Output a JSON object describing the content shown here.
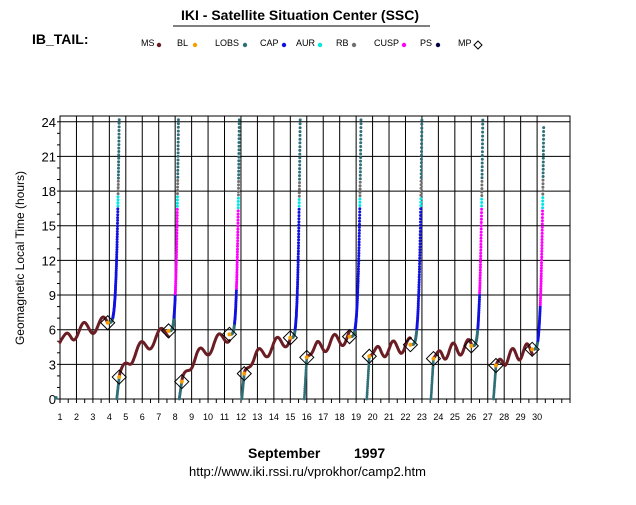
{
  "header": {
    "title": "IKI - Satellite Situation Center (SSC)",
    "satellite_label": "IB_TAIL:"
  },
  "legend": [
    {
      "label": "MS",
      "color": "#6b1d24",
      "shape": "dot"
    },
    {
      "label": "BL",
      "color": "#f5a000",
      "shape": "dot"
    },
    {
      "label": "LOBS",
      "color": "#2f6f78",
      "shape": "dot"
    },
    {
      "label": "CAP",
      "color": "#1010e0",
      "shape": "dot"
    },
    {
      "label": "AUR",
      "color": "#00e5e5",
      "shape": "dot"
    },
    {
      "label": "RB",
      "color": "#707070",
      "shape": "dot"
    },
    {
      "label": "CUSP",
      "color": "#ff00ff",
      "shape": "dot"
    },
    {
      "label": "PS",
      "color": "#000040",
      "shape": "dot"
    },
    {
      "label": "MP",
      "color": "#000000",
      "shape": "diamond"
    }
  ],
  "footer": {
    "month": "September",
    "year": "1997",
    "url": "http://www.iki.rssi.ru/vprokhor/camp2.htm"
  },
  "chart_data": {
    "type": "scatter",
    "title": "IKI - Satellite Situation Center (SSC)",
    "xlabel": "September 1997",
    "ylabel": "Geomagnetic Local Time (hours)",
    "xlim": [
      1,
      32
    ],
    "ylim": [
      0,
      24.5
    ],
    "x_ticks": [
      1,
      2,
      3,
      4,
      5,
      6,
      7,
      8,
      9,
      10,
      11,
      12,
      13,
      14,
      15,
      16,
      17,
      18,
      19,
      20,
      21,
      22,
      23,
      24,
      25,
      26,
      27,
      28,
      29,
      30
    ],
    "y_ticks": [
      0,
      3,
      6,
      9,
      12,
      15,
      18,
      21,
      24
    ],
    "grid": true,
    "magnetopause_crossings": [
      {
        "x": 3.9,
        "y": 6.6
      },
      {
        "x": 4.6,
        "y": 1.9
      },
      {
        "x": 7.6,
        "y": 5.9
      },
      {
        "x": 8.4,
        "y": 1.5
      },
      {
        "x": 11.3,
        "y": 5.6
      },
      {
        "x": 12.2,
        "y": 2.2
      },
      {
        "x": 15.0,
        "y": 5.3
      },
      {
        "x": 16.0,
        "y": 3.6
      },
      {
        "x": 18.6,
        "y": 5.4
      },
      {
        "x": 19.8,
        "y": 3.7
      },
      {
        "x": 22.3,
        "y": 4.7
      },
      {
        "x": 23.7,
        "y": 3.5
      },
      {
        "x": 26.0,
        "y": 4.6
      },
      {
        "x": 27.5,
        "y": 2.9
      },
      {
        "x": 29.7,
        "y": 4.3
      }
    ],
    "orbits": [
      {
        "start": [
          1.0,
          4.9
        ],
        "min": [
          1.6,
          4.1
        ],
        "end": [
          3.9,
          6.6
        ],
        "up": [
          4.1,
          4.4
        ],
        "top": [
          4.6,
          24.5
        ]
      },
      {
        "start": [
          4.6,
          1.9
        ],
        "min": [
          4.6,
          1.9
        ],
        "end": [
          7.6,
          5.9
        ],
        "up": [
          7.8,
          7.6
        ],
        "top": [
          8.2,
          24.5
        ]
      },
      {
        "start": [
          8.4,
          1.5
        ],
        "min": [
          8.4,
          1.5
        ],
        "end": [
          11.3,
          5.6
        ],
        "up": [
          11.5,
          11.1
        ],
        "top": [
          11.9,
          24.5
        ]
      },
      {
        "start": [
          12.2,
          2.2
        ],
        "min": [
          12.2,
          2.2
        ],
        "end": [
          15.0,
          5.3
        ],
        "up": [
          15.3,
          15.1
        ],
        "top": [
          15.6,
          24.5
        ]
      },
      {
        "start": [
          16.0,
          3.6
        ],
        "min": [
          16.0,
          3.6
        ],
        "end": [
          18.6,
          5.4
        ],
        "up": [
          18.9,
          18.6
        ],
        "top": [
          19.3,
          24.5
        ]
      },
      {
        "start": [
          19.8,
          3.7
        ],
        "min": [
          19.8,
          3.7
        ],
        "end": [
          22.3,
          4.7
        ],
        "up": [
          22.6,
          22.4
        ],
        "top": [
          23.0,
          24.5
        ]
      },
      {
        "start": [
          23.7,
          3.5
        ],
        "min": [
          23.7,
          3.5
        ],
        "end": [
          26.0,
          4.6
        ],
        "up": [
          26.3,
          26.1
        ],
        "top": [
          26.7,
          24.5
        ]
      },
      {
        "start": [
          27.5,
          2.9
        ],
        "min": [
          27.5,
          2.9
        ],
        "end": [
          29.7,
          4.3
        ],
        "up": [
          30.0,
          30.0
        ],
        "top": [
          30.4,
          23.5
        ]
      }
    ],
    "rising_segments_colored": [
      {
        "day_index": 0,
        "cap_from": 7.0,
        "cap_to": 17.0,
        "ps": false
      },
      {
        "day_index": 1,
        "cap_from": 7.0,
        "cap_to": 9.0,
        "ps": true
      },
      {
        "day_index": 2,
        "cap_from": 6.5,
        "cap_to": 9.5,
        "ps": true
      },
      {
        "day_index": 3,
        "cap_from": 6.0,
        "cap_to": 17.0,
        "ps": false
      },
      {
        "day_index": 4,
        "cap_from": 6.0,
        "cap_to": 17.0,
        "ps": false
      },
      {
        "day_index": 5,
        "cap_from": 6.0,
        "cap_to": 17.0,
        "ps": false
      },
      {
        "day_index": 6,
        "cap_from": 6.0,
        "cap_to": 9.0,
        "ps": true
      },
      {
        "day_index": 7,
        "cap_from": 5.0,
        "cap_to": 8.0,
        "ps": true
      }
    ]
  }
}
